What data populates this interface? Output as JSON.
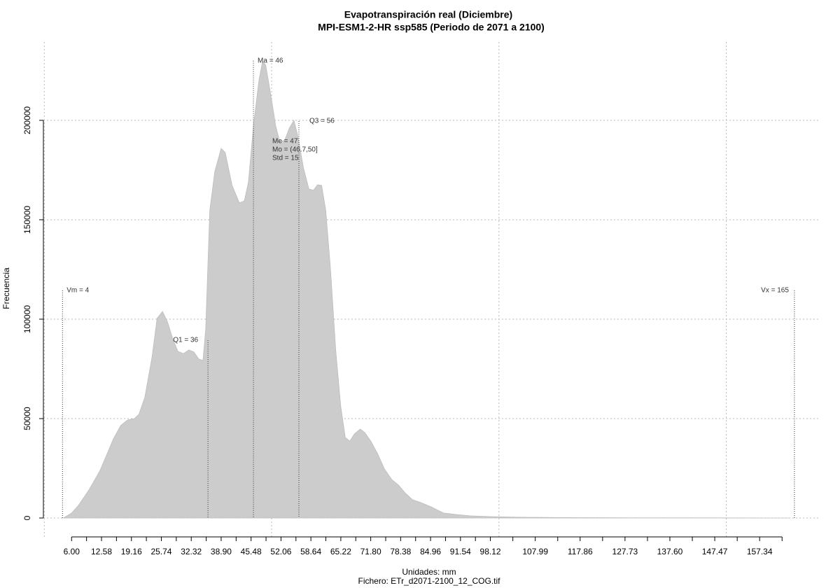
{
  "chart_data": {
    "type": "area",
    "title": "Evapotranspiración real (Diciembre)",
    "subtitle": "MPI-ESM1-2-HR ssp585 (Periodo de 2071 a 2100)",
    "xlabel": "Unidades: mm",
    "ylabel": "Frecuencia",
    "caption": "Fichero: ETr_d2071-2100_12_COG.tif",
    "color": "#cccccc",
    "x": [
      4.2,
      6.0,
      7.5,
      9.8,
      12.2,
      13.7,
      15.2,
      16.8,
      18.3,
      19.8,
      20.8,
      22.1,
      23.7,
      24.8,
      26.0,
      27.1,
      28.3,
      29.4,
      30.6,
      31.8,
      32.9,
      34.0,
      34.9,
      35.5,
      36.4,
      37.5,
      38.9,
      39.8,
      41.3,
      42.9,
      44.0,
      44.9,
      46.0,
      47.2,
      48.0,
      48.7,
      49.8,
      50.9,
      51.8,
      52.9,
      53.9,
      54.9,
      55.8,
      57.0,
      58.2,
      59.2,
      60.1,
      61.0,
      61.9,
      62.9,
      64.1,
      65.2,
      66.2,
      67.2,
      68.2,
      69.5,
      70.5,
      71.8,
      73.3,
      74.8,
      76.4,
      77.9,
      79.5,
      81.0,
      82.8,
      85.1,
      87.8,
      90.5,
      93.6,
      98.2,
      104.3,
      113.6,
      128.9,
      144.3,
      164.0
    ],
    "values": [
      0,
      2500,
      6300,
      14100,
      23600,
      31700,
      39800,
      46500,
      49300,
      50000,
      52100,
      60600,
      81000,
      100400,
      103900,
      98600,
      89800,
      83800,
      82700,
      84500,
      83500,
      79900,
      79200,
      95100,
      154900,
      174300,
      185900,
      183800,
      167300,
      158500,
      159500,
      169000,
      197200,
      220100,
      229600,
      227800,
      213000,
      197200,
      189100,
      190100,
      196100,
      200000,
      191900,
      176100,
      165500,
      164800,
      167600,
      167300,
      154900,
      126800,
      84500,
      56300,
      40500,
      38700,
      42300,
      44700,
      43000,
      38700,
      32400,
      24700,
      19400,
      16600,
      12300,
      9200,
      7800,
      5600,
      2500,
      1800,
      1100,
      700,
      400,
      200,
      100,
      100,
      0
    ],
    "markers": [
      {
        "label": "Vm = 4",
        "value": 4,
        "y": 114400
      },
      {
        "label": "Q1 = 36",
        "value": 36,
        "y": 89400
      },
      {
        "label": "Ma = 46",
        "value": 46,
        "y": 230000
      },
      {
        "label": "Q3 = 56",
        "value": 56,
        "y": 199600
      },
      {
        "label": "Vx = 165",
        "value": 165,
        "y": 114400
      }
    ],
    "stats": [
      "Me = 47",
      "Mo = (46.7,50]",
      "Std = 15"
    ],
    "xlim": [
      -0.2,
      170.4
    ],
    "ylim": [
      -9500,
      239400
    ],
    "xticks": [
      {
        "value": 6,
        "label": "6.00"
      },
      {
        "value": 12.58,
        "label": "12.58"
      },
      {
        "value": 19.16,
        "label": "19.16"
      },
      {
        "value": 25.74,
        "label": "25.74"
      },
      {
        "value": 32.32,
        "label": "32.32"
      },
      {
        "value": 38.9,
        "label": "38.90"
      },
      {
        "value": 45.48,
        "label": "45.48"
      },
      {
        "value": 52.06,
        "label": "52.06"
      },
      {
        "value": 58.64,
        "label": "58.64"
      },
      {
        "value": 65.22,
        "label": "65.22"
      },
      {
        "value": 71.8,
        "label": "71.80"
      },
      {
        "value": 78.38,
        "label": "78.38"
      },
      {
        "value": 84.96,
        "label": "84.96"
      },
      {
        "value": 91.54,
        "label": "91.54"
      },
      {
        "value": 98.12,
        "label": "98.12"
      },
      {
        "value": 107.99,
        "label": "107.99"
      },
      {
        "value": 117.86,
        "label": "117.86"
      },
      {
        "value": 127.73,
        "label": "127.73"
      },
      {
        "value": 137.6,
        "label": "137.60"
      },
      {
        "value": 147.47,
        "label": "147.47"
      },
      {
        "value": 157.34,
        "label": "157.34"
      }
    ],
    "xticks_minor": [
      9.29,
      15.87,
      22.45,
      29.03,
      35.61,
      42.19,
      48.77,
      55.35,
      61.93,
      68.51,
      75.09,
      81.67,
      88.25,
      94.83,
      103.06,
      112.93,
      122.8,
      132.67,
      142.54,
      152.41,
      162.28
    ],
    "xgrid": [
      0,
      50,
      100,
      150
    ],
    "yticks": [
      0,
      50000,
      100000,
      150000,
      200000
    ],
    "grid": true
  }
}
